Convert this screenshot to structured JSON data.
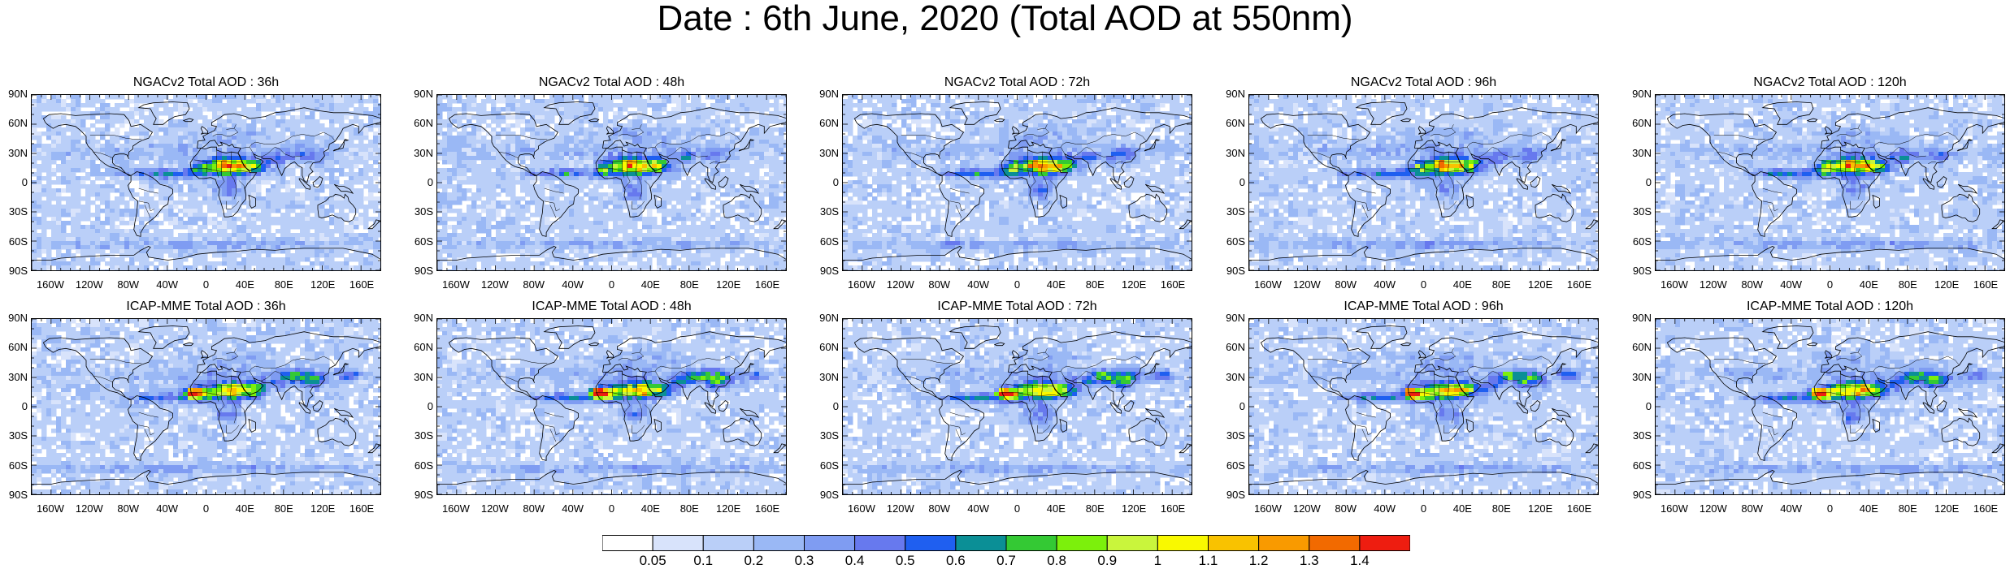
{
  "title": "Date : 6th June, 2020 (Total AOD at 550nm)",
  "panels": [
    {
      "title": "NGACv2 Total AOD : 36h",
      "model": "NGACv2",
      "lead": 36
    },
    {
      "title": "NGACv2 Total AOD : 48h",
      "model": "NGACv2",
      "lead": 48
    },
    {
      "title": "NGACv2 Total AOD : 72h",
      "model": "NGACv2",
      "lead": 72
    },
    {
      "title": "NGACv2 Total AOD : 96h",
      "model": "NGACv2",
      "lead": 96
    },
    {
      "title": "NGACv2 Total AOD : 120h",
      "model": "NGACv2",
      "lead": 120
    },
    {
      "title": "ICAP-MME Total AOD : 36h",
      "model": "ICAP-MME",
      "lead": 36
    },
    {
      "title": "ICAP-MME Total AOD : 48h",
      "model": "ICAP-MME",
      "lead": 48
    },
    {
      "title": "ICAP-MME Total AOD : 72h",
      "model": "ICAP-MME",
      "lead": 72
    },
    {
      "title": "ICAP-MME Total AOD : 96h",
      "model": "ICAP-MME",
      "lead": 96
    },
    {
      "title": "ICAP-MME Total AOD : 120h",
      "model": "ICAP-MME",
      "lead": 120
    }
  ],
  "lat_labels": [
    "90N",
    "60N",
    "30N",
    "0",
    "30S",
    "60S",
    "90S"
  ],
  "lon_labels": [
    "160W",
    "120W",
    "80W",
    "40W",
    "0",
    "40E",
    "80E",
    "120E",
    "160E"
  ],
  "colorbar": {
    "labels": [
      "0.05",
      "0.1",
      "0.2",
      "0.3",
      "0.4",
      "0.5",
      "0.6",
      "0.7",
      "0.8",
      "0.9",
      "1",
      "1.1",
      "1.2",
      "1.3",
      "1.4"
    ],
    "colors": [
      "#ffffff",
      "#d8e3fb",
      "#bacff8",
      "#9ab8f5",
      "#7f9cf2",
      "#6779ee",
      "#1f5ff0",
      "#0b8f96",
      "#34c934",
      "#7cf00c",
      "#c9f53c",
      "#f9f900",
      "#f9c200",
      "#f99a00",
      "#f26a00",
      "#ee1d10"
    ]
  }
}
